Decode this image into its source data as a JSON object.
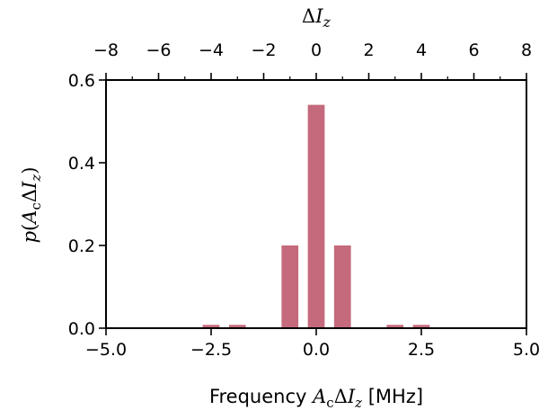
{
  "chart_data": {
    "type": "bar",
    "bar_color": "#c46a7c",
    "x": [
      -2.5,
      -1.875,
      -0.625,
      0,
      0.625,
      1.875,
      2.5
    ],
    "values": [
      0.008,
      0.008,
      0.2,
      0.54,
      0.2,
      0.008,
      0.008
    ],
    "bar_width": 0.4,
    "xlim": [
      -5.0,
      5.0
    ],
    "ylim": [
      0,
      0.6
    ],
    "x_ticks": [
      -5.0,
      -2.5,
      0.0,
      2.5,
      5.0
    ],
    "x_tick_labels": [
      "−5.0",
      "−2.5",
      "0.0",
      "2.5",
      "5.0"
    ],
    "y_ticks": [
      0.0,
      0.2,
      0.4,
      0.6
    ],
    "y_tick_labels": [
      "0.0",
      "0.2",
      "0.4",
      "0.6"
    ],
    "top_xlim": [
      -8,
      8
    ],
    "top_ticks": [
      -8,
      -6,
      -4,
      -2,
      0,
      2,
      4,
      6,
      8
    ],
    "top_tick_labels": [
      "−8",
      "−6",
      "−4",
      "−2",
      "0",
      "2",
      "4",
      "6",
      "8"
    ],
    "xlabel": {
      "prefix": "Frequency ",
      "A": "A",
      "c": "c",
      "delta": "Δ",
      "I": "I",
      "z": "z",
      "suffix": " [MHz]"
    },
    "ylabel": {
      "p": "p",
      "open": "(",
      "A": "A",
      "c": "c",
      "delta": "Δ",
      "I": "I",
      "z": "z",
      "close": ")"
    },
    "top_xlabel": {
      "delta": "Δ",
      "I": "I",
      "z": "z"
    },
    "grid": false,
    "legend": "none"
  }
}
